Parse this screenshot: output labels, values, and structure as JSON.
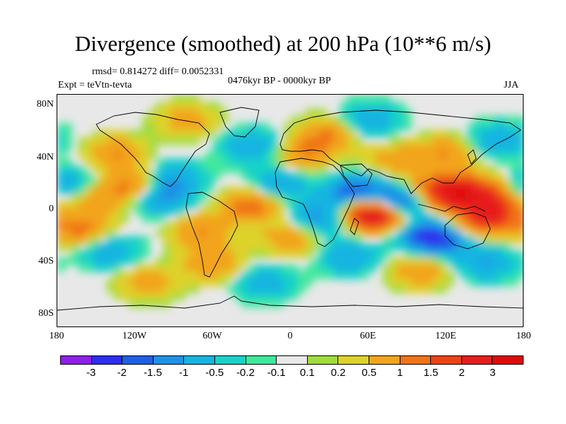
{
  "title": "Divergence (smoothed) at 200 hPa (10**6 m/s)",
  "stats": "rmsd= 0.814272 diff= 0.0052331",
  "experiment": "Expt = teVtn-tevta",
  "period": "0476kyr BP - 0000kyr BP",
  "season": "JJA",
  "colors": {
    "background": "#e8e8e8",
    "coast": "#000000"
  },
  "chart_data": {
    "type": "heatmap",
    "variable": "Divergence (smoothed) at 200 hPa",
    "units": "10**6 m/s",
    "projection": "cylindrical equidistant",
    "lon_range": [
      -180,
      180
    ],
    "lat_range": [
      -90,
      90
    ],
    "x_ticks": [
      "180",
      "120W",
      "60W",
      "0",
      "60E",
      "120E",
      "180"
    ],
    "y_ticks": [
      "80N",
      "40N",
      "0",
      "40S",
      "80S"
    ],
    "colorbar": {
      "labels": [
        "-3",
        "-2",
        "-1.5",
        "-1",
        "-0.5",
        "-0.2",
        "-0.1",
        "0.1",
        "0.2",
        "0.5",
        "1",
        "1.5",
        "2",
        "3"
      ],
      "colors": [
        "#8d1fe6",
        "#2d2df0",
        "#1f5fe6",
        "#1f91e6",
        "#14b4e1",
        "#19d2c8",
        "#3fe89c",
        "#e8e8e8",
        "#a0dc3c",
        "#ddd22a",
        "#f2a41e",
        "#f07318",
        "#ec4314",
        "#e61e1e",
        "#e00a0a"
      ]
    },
    "anomalies": [
      {
        "lon": 65,
        "lat": 0,
        "value": 4.0
      },
      {
        "lon": 90,
        "lat": -8,
        "value": 3.0
      },
      {
        "lon": 82,
        "lat": 5,
        "value": -3.5
      },
      {
        "lon": 95,
        "lat": -12,
        "value": -3.0
      },
      {
        "lon": 50,
        "lat": 15,
        "value": -2.0
      },
      {
        "lon": 115,
        "lat": -22,
        "value": -2.0
      },
      {
        "lon": 130,
        "lat": 15,
        "value": 2.0
      },
      {
        "lon": 150,
        "lat": 12,
        "value": 1.2
      },
      {
        "lon": 160,
        "lat": -3,
        "value": 1.5
      },
      {
        "lon": 140,
        "lat": -8,
        "value": 1.2
      },
      {
        "lon": 110,
        "lat": 15,
        "value": 1.5
      },
      {
        "lon": 30,
        "lat": 60,
        "value": 1.0
      },
      {
        "lon": 60,
        "lat": 70,
        "value": -1.0
      },
      {
        "lon": -150,
        "lat": 10,
        "value": 1.0
      },
      {
        "lon": -120,
        "lat": 20,
        "value": 1.2
      },
      {
        "lon": -160,
        "lat": -15,
        "value": 1.2
      },
      {
        "lon": -170,
        "lat": 20,
        "value": -1.0
      },
      {
        "lon": -135,
        "lat": 45,
        "value": 1.0
      },
      {
        "lon": -100,
        "lat": 10,
        "value": -1.2
      },
      {
        "lon": -90,
        "lat": 25,
        "value": -1.0
      },
      {
        "lon": -70,
        "lat": -15,
        "value": 1.0
      },
      {
        "lon": -140,
        "lat": -30,
        "value": -1.0
      },
      {
        "lon": -60,
        "lat": -40,
        "value": 1.0
      },
      {
        "lon": -30,
        "lat": 5,
        "value": 1.5
      },
      {
        "lon": -10,
        "lat": 20,
        "value": -1.0
      },
      {
        "lon": 20,
        "lat": -5,
        "value": -1.2
      },
      {
        "lon": 0,
        "lat": -20,
        "value": 1.0
      },
      {
        "lon": 45,
        "lat": -35,
        "value": -1.0
      },
      {
        "lon": 10,
        "lat": 45,
        "value": 1.0
      },
      {
        "lon": -30,
        "lat": 50,
        "value": -1.0
      },
      {
        "lon": 100,
        "lat": -45,
        "value": 1.0
      },
      {
        "lon": 150,
        "lat": -40,
        "value": -1.0
      },
      {
        "lon": -110,
        "lat": -55,
        "value": 0.8
      },
      {
        "lon": 160,
        "lat": 55,
        "value": -1.0
      },
      {
        "lon": -80,
        "lat": 70,
        "value": 0.8
      },
      {
        "lon": -20,
        "lat": -55,
        "value": -0.8
      },
      {
        "lon": 120,
        "lat": 45,
        "value": 1.0
      },
      {
        "lon": 80,
        "lat": 40,
        "value": 0.8
      }
    ]
  }
}
